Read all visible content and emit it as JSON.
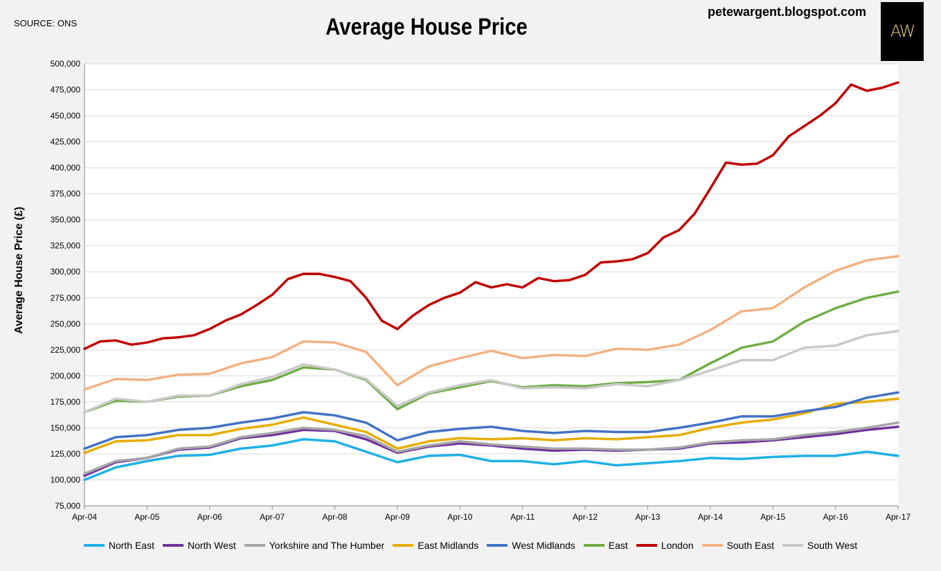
{
  "source_label": "SOURCE: ONS",
  "blog": "petewargent.blogspot.com",
  "logo_text": "AW",
  "chart_data": {
    "type": "line",
    "title": "Average House Price",
    "ylabel": "Average House Price (£)",
    "xlabel": "",
    "ylim": [
      75000,
      500000
    ],
    "yticks": [
      75000,
      100000,
      125000,
      150000,
      175000,
      200000,
      225000,
      250000,
      275000,
      300000,
      325000,
      350000,
      375000,
      400000,
      425000,
      450000,
      475000,
      500000
    ],
    "ytick_labels": [
      "75,000",
      "100,000",
      "125,000",
      "150,000",
      "175,000",
      "200,000",
      "225,000",
      "250,000",
      "275,000",
      "300,000",
      "325,000",
      "350,000",
      "375,000",
      "400,000",
      "425,000",
      "450,000",
      "475,000",
      "500,000"
    ],
    "x_labels": [
      "Apr-04",
      "Apr-05",
      "Apr-06",
      "Apr-07",
      "Apr-08",
      "Apr-09",
      "Apr-10",
      "Apr-11",
      "Apr-12",
      "Apr-13",
      "Apr-14",
      "Apr-15",
      "Apr-16",
      "Apr-17"
    ],
    "x_range": [
      0,
      13
    ],
    "grid": true,
    "legend_position": "bottom",
    "series": [
      {
        "name": "North East",
        "color": "#1fb1e6",
        "x": [
          0,
          0.5,
          1,
          1.5,
          2,
          2.5,
          3,
          3.5,
          4,
          4.5,
          5,
          5.5,
          6,
          6.5,
          7,
          7.5,
          8,
          8.5,
          9,
          9.5,
          10,
          10.5,
          11,
          11.5,
          12,
          12.5,
          13
        ],
        "values": [
          100000,
          112000,
          118000,
          123000,
          124000,
          130000,
          133000,
          139000,
          137000,
          127000,
          117000,
          123000,
          124000,
          118000,
          118000,
          115000,
          118000,
          114000,
          116000,
          118000,
          121000,
          120000,
          122000,
          123000,
          123000,
          127000,
          123000
        ]
      },
      {
        "name": "North West",
        "color": "#7030a0",
        "x": [
          0,
          0.5,
          1,
          1.5,
          2,
          2.5,
          3,
          3.5,
          4,
          4.5,
          5,
          5.5,
          6,
          6.5,
          7,
          7.5,
          8,
          8.5,
          9,
          9.5,
          10,
          10.5,
          11,
          11.5,
          12,
          12.5,
          13
        ],
        "values": [
          104000,
          117000,
          121000,
          129000,
          131000,
          140000,
          143000,
          148000,
          147000,
          139000,
          126000,
          132000,
          135000,
          133000,
          130000,
          128000,
          129000,
          128000,
          129000,
          130000,
          135000,
          136000,
          138000,
          141000,
          144000,
          148000,
          151000
        ]
      },
      {
        "name": "Yorkshire and The Humber",
        "color": "#a6a6a6",
        "x": [
          0,
          0.5,
          1,
          1.5,
          2,
          2.5,
          3,
          3.5,
          4,
          4.5,
          5,
          5.5,
          6,
          6.5,
          7,
          7.5,
          8,
          8.5,
          9,
          9.5,
          10,
          10.5,
          11,
          11.5,
          12,
          12.5,
          13
        ],
        "values": [
          106000,
          118000,
          121000,
          130000,
          132000,
          141000,
          145000,
          150000,
          148000,
          142000,
          127000,
          133000,
          137000,
          134000,
          132000,
          130000,
          130000,
          129000,
          129000,
          131000,
          136000,
          138000,
          139000,
          143000,
          146000,
          150000,
          155000
        ]
      },
      {
        "name": "East Midlands",
        "color": "#e7ad00",
        "x": [
          0,
          0.5,
          1,
          1.5,
          2,
          2.5,
          3,
          3.5,
          4,
          4.5,
          5,
          5.5,
          6,
          6.5,
          7,
          7.5,
          8,
          8.5,
          9,
          9.5,
          10,
          10.5,
          11,
          11.5,
          12,
          12.5,
          13
        ],
        "values": [
          126000,
          137000,
          138000,
          143000,
          143000,
          149000,
          153000,
          160000,
          153000,
          146000,
          130000,
          137000,
          140000,
          139000,
          140000,
          138000,
          140000,
          139000,
          141000,
          143000,
          150000,
          155000,
          158000,
          164000,
          173000,
          175000,
          178000
        ]
      },
      {
        "name": "West Midlands",
        "color": "#4472c4",
        "x": [
          0,
          0.5,
          1,
          1.5,
          2,
          2.5,
          3,
          3.5,
          4,
          4.5,
          5,
          5.5,
          6,
          6.5,
          7,
          7.5,
          8,
          8.5,
          9,
          9.5,
          10,
          10.5,
          11,
          11.5,
          12,
          12.5,
          13
        ],
        "values": [
          130000,
          141000,
          143000,
          148000,
          150000,
          155000,
          159000,
          165000,
          162000,
          155000,
          138000,
          146000,
          149000,
          151000,
          147000,
          145000,
          147000,
          146000,
          146000,
          150000,
          155000,
          161000,
          161000,
          166000,
          170000,
          179000,
          184000
        ]
      },
      {
        "name": "East",
        "color": "#70ad47",
        "x": [
          0,
          0.5,
          1,
          1.5,
          2,
          2.5,
          3,
          3.5,
          4,
          4.5,
          5,
          5.5,
          6,
          6.5,
          7,
          7.5,
          8,
          8.5,
          9,
          9.5,
          10,
          10.5,
          11,
          11.5,
          12,
          12.5,
          13
        ],
        "values": [
          165000,
          176000,
          175000,
          180000,
          181000,
          190000,
          196000,
          208000,
          206000,
          196000,
          168000,
          183000,
          189000,
          195000,
          189000,
          191000,
          190000,
          193000,
          194000,
          196000,
          212000,
          227000,
          233000,
          252000,
          265000,
          275000,
          281000
        ]
      },
      {
        "name": "London",
        "color": "#c00000",
        "x": [
          0,
          0.25,
          0.5,
          0.75,
          1,
          1.25,
          1.5,
          1.75,
          2,
          2.25,
          2.5,
          2.75,
          3,
          3.25,
          3.5,
          3.75,
          4,
          4.25,
          4.5,
          4.75,
          5,
          5.25,
          5.5,
          5.75,
          6,
          6.25,
          6.5,
          6.75,
          7,
          7.25,
          7.5,
          7.75,
          8,
          8.25,
          8.5,
          8.75,
          9,
          9.25,
          9.5,
          9.75,
          10,
          10.25,
          10.5,
          10.75,
          11,
          11.25,
          11.5,
          11.75,
          12,
          12.25,
          12.5,
          12.75,
          13
        ],
        "values": [
          226000,
          233000,
          234000,
          230000,
          232000,
          236000,
          237000,
          239000,
          245000,
          253000,
          259000,
          268000,
          278000,
          293000,
          298000,
          298000,
          295000,
          291000,
          275000,
          253000,
          245000,
          258000,
          268000,
          275000,
          280000,
          290000,
          285000,
          288000,
          285000,
          294000,
          291000,
          292000,
          297000,
          309000,
          310000,
          312000,
          318000,
          333000,
          340000,
          356000,
          380000,
          405000,
          403000,
          404000,
          412000,
          430000,
          440000,
          450000,
          462000,
          480000,
          474000,
          477000,
          482000
        ]
      },
      {
        "name": "South East",
        "color": "#f4b183",
        "x": [
          0,
          0.5,
          1,
          1.5,
          2,
          2.5,
          3,
          3.5,
          4,
          4.5,
          5,
          5.5,
          6,
          6.5,
          7,
          7.5,
          8,
          8.5,
          9,
          9.5,
          10,
          10.5,
          11,
          11.5,
          12,
          12.5,
          13
        ],
        "values": [
          187000,
          197000,
          196000,
          201000,
          202000,
          212000,
          218000,
          233000,
          232000,
          223000,
          191000,
          209000,
          217000,
          224000,
          217000,
          220000,
          219000,
          226000,
          225000,
          230000,
          244000,
          262000,
          265000,
          285000,
          301000,
          311000,
          315000
        ]
      },
      {
        "name": "South West",
        "color": "#c9c9c9",
        "x": [
          0,
          0.5,
          1,
          1.5,
          2,
          2.5,
          3,
          3.5,
          4,
          4.5,
          5,
          5.5,
          6,
          6.5,
          7,
          7.5,
          8,
          8.5,
          9,
          9.5,
          10,
          10.5,
          11,
          11.5,
          12,
          12.5,
          13
        ],
        "values": [
          165000,
          178000,
          175000,
          181000,
          181000,
          192000,
          199000,
          211000,
          206000,
          197000,
          171000,
          184000,
          191000,
          196000,
          188000,
          189000,
          188000,
          192000,
          190000,
          196000,
          205000,
          215000,
          215000,
          227000,
          229000,
          239000,
          243000
        ]
      }
    ]
  }
}
